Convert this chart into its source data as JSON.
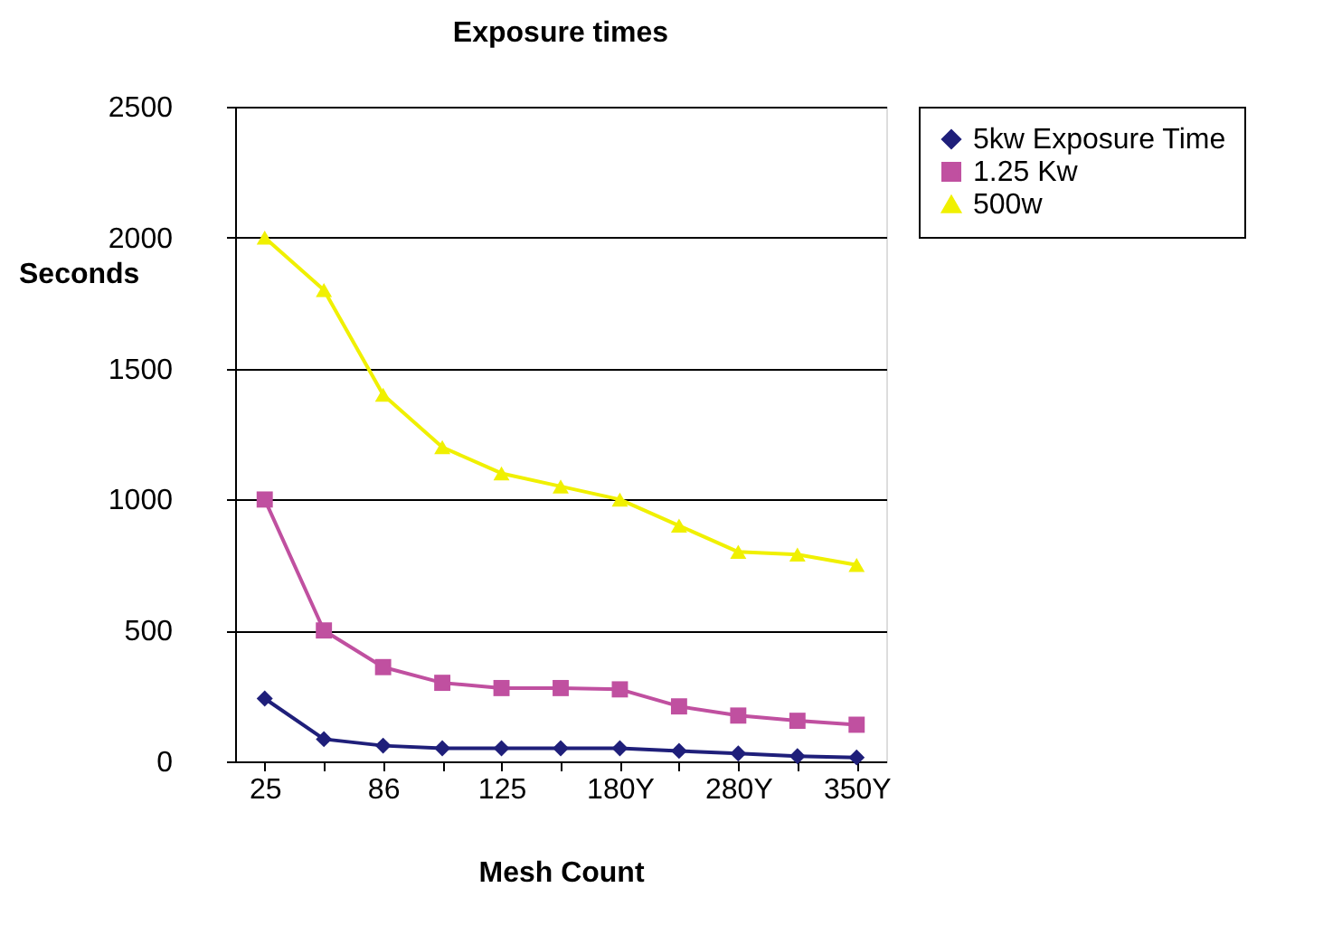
{
  "chart_data": {
    "type": "line",
    "title": "Exposure times",
    "xlabel": "Mesh Count",
    "ylabel": "Seconds",
    "categories": [
      "25",
      null,
      "86",
      null,
      "125",
      null,
      "180Y",
      null,
      "280Y",
      null,
      "350Y"
    ],
    "series": [
      {
        "name": "5kw Exposure Time",
        "color": "#1f1f7a",
        "marker": "diamond",
        "values": [
          240,
          85,
          60,
          50,
          50,
          50,
          50,
          40,
          30,
          20,
          15
        ]
      },
      {
        "name": "1.25 Kw",
        "color": "#c050a0",
        "marker": "square",
        "values": [
          1000,
          500,
          360,
          300,
          280,
          280,
          275,
          210,
          175,
          155,
          140
        ]
      },
      {
        "name": "500w",
        "color": "#f0f000",
        "marker": "triangle",
        "values": [
          2000,
          1800,
          1400,
          1200,
          1100,
          1050,
          1000,
          900,
          800,
          790,
          750
        ]
      }
    ],
    "ylim": [
      0,
      2500
    ],
    "yticks": [
      0,
      500,
      1000,
      1500,
      2000,
      2500
    ],
    "grid": "y",
    "legend": "right",
    "line_style": "solid"
  }
}
